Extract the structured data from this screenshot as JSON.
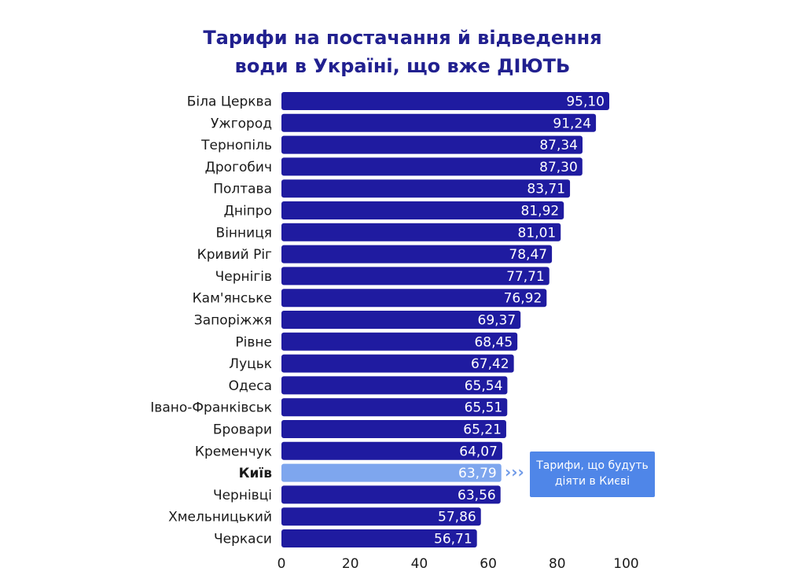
{
  "chart_data": {
    "type": "bar",
    "orientation": "horizontal",
    "title_lines": [
      "Тарифи на постачання й відведення",
      "води в Україні, що вже ДІЮТЬ"
    ],
    "categories": [
      "Біла Церква",
      "Ужгород",
      "Тернопіль",
      "Дрогобич",
      "Полтава",
      "Дніпро",
      "Вінниця",
      "Кривий Ріг",
      "Чернігів",
      "Кам'янське",
      "Запоріжжя",
      "Рівне",
      "Луцьк",
      "Одеса",
      "Івано-Франківськ",
      "Бровари",
      "Кременчук",
      "Київ",
      "Чернівці",
      "Хмельницький",
      "Черкаси"
    ],
    "values": [
      95.1,
      91.24,
      87.34,
      87.3,
      83.71,
      81.92,
      81.01,
      78.47,
      77.71,
      76.92,
      69.37,
      68.45,
      67.42,
      65.54,
      65.51,
      65.21,
      64.07,
      63.79,
      63.56,
      57.86,
      56.71
    ],
    "value_labels": [
      "95,10",
      "91,24",
      "87,34",
      "87,30",
      "83,71",
      "81,92",
      "81,01",
      "78,47",
      "77,71",
      "76,92",
      "69,37",
      "68,45",
      "67,42",
      "65,54",
      "65,51",
      "65,21",
      "64,07",
      "63,79",
      "63,56",
      "57,86",
      "56,71"
    ],
    "highlight_category": "Київ",
    "annotation_lines": [
      "Тарифи, що будуть",
      "діяти в Києві"
    ],
    "annotation_arrow": "›››",
    "xticks": [
      "0",
      "20",
      "40",
      "60",
      "80",
      "100"
    ],
    "xtick_values": [
      0,
      20,
      40,
      60,
      80,
      100
    ],
    "xlim": [
      0,
      100
    ],
    "grid": false,
    "legend": "none",
    "colors": {
      "bar": "#1f1ba0",
      "bar_highlight": "#7ea6ee",
      "title": "#21208f",
      "annotation_box": "#4f86e8",
      "annotation_text": "#ffffff",
      "arrow": "#6f9ae8",
      "label": "#1a1a1a"
    }
  }
}
